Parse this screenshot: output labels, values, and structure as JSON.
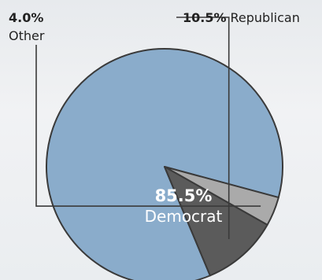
{
  "chart_data": {
    "type": "pie",
    "series": [
      {
        "slices": [
          {
            "label": "Democrat",
            "value": 85.5,
            "pct_text": "85.5%",
            "color": "#8aaccb"
          },
          {
            "label": "Other",
            "value": 4.0,
            "pct_text": "4.0%",
            "color": "#aaaaaa"
          },
          {
            "label": "Republican",
            "value": 10.5,
            "pct_text": "10.5%",
            "color": "#5b5b5b"
          }
        ]
      }
    ],
    "slice_border_color": "#3a3a3a",
    "label_text_color": "#222222",
    "inside_label_color": "#ffffff"
  }
}
